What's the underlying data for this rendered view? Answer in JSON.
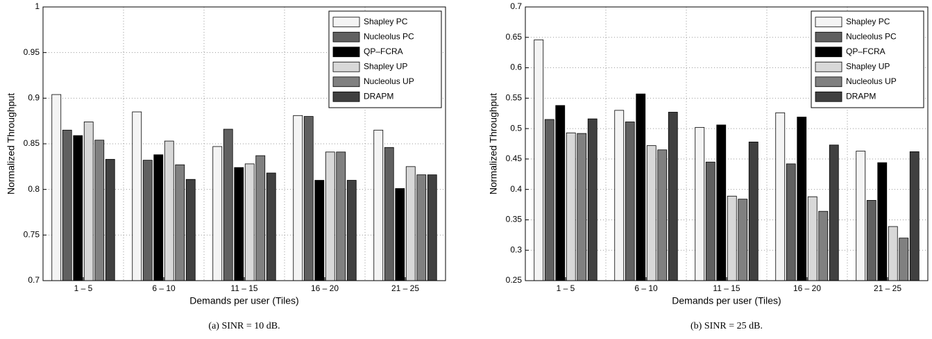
{
  "chart_data": [
    {
      "type": "bar",
      "caption": "(a) SINR = 10 dB.",
      "xlabel": "Demands per user (Tiles)",
      "ylabel": "Normalized Throughput",
      "categories": [
        "1 – 5",
        "6 – 10",
        "11 – 15",
        "16 – 20",
        "21 – 25"
      ],
      "ylim": [
        0.7,
        1
      ],
      "yticks": [
        0.7,
        0.75,
        0.8,
        0.85,
        0.9,
        0.95,
        1
      ],
      "grid": true,
      "legend": "upper right",
      "series": [
        {
          "name": "Shapley PC",
          "color": "#f4f4f4",
          "values": [
            0.904,
            0.885,
            0.847,
            0.881,
            0.865
          ]
        },
        {
          "name": "Nucleolus PC",
          "color": "#606060",
          "values": [
            0.865,
            0.832,
            0.866,
            0.88,
            0.846
          ]
        },
        {
          "name": "QP–FCRA",
          "color": "#000000",
          "values": [
            0.859,
            0.838,
            0.824,
            0.81,
            0.801
          ]
        },
        {
          "name": "Shapley UP",
          "color": "#d8d8d8",
          "values": [
            0.874,
            0.853,
            0.828,
            0.841,
            0.825
          ]
        },
        {
          "name": "Nucleolus UP",
          "color": "#808080",
          "values": [
            0.854,
            0.827,
            0.837,
            0.841,
            0.816
          ]
        },
        {
          "name": "DRAPM",
          "color": "#404040",
          "values": [
            0.833,
            0.811,
            0.818,
            0.81,
            0.816
          ]
        }
      ]
    },
    {
      "type": "bar",
      "caption": "(b) SINR = 25 dB.",
      "xlabel": "Demands per user (Tiles)",
      "ylabel": "Normalized Throughput",
      "categories": [
        "1 – 5",
        "6 – 10",
        "11 – 15",
        "16 – 20",
        "21 – 25"
      ],
      "ylim": [
        0.25,
        0.7
      ],
      "yticks": [
        0.25,
        0.3,
        0.35,
        0.4,
        0.45,
        0.5,
        0.55,
        0.6,
        0.65,
        0.7
      ],
      "grid": true,
      "legend": "upper right",
      "series": [
        {
          "name": "Shapley PC",
          "color": "#f4f4f4",
          "values": [
            0.646,
            0.53,
            0.502,
            0.526,
            0.463
          ]
        },
        {
          "name": "Nucleolus PC",
          "color": "#606060",
          "values": [
            0.515,
            0.511,
            0.445,
            0.442,
            0.382
          ]
        },
        {
          "name": "QP–FCRA",
          "color": "#000000",
          "values": [
            0.538,
            0.557,
            0.506,
            0.519,
            0.444
          ]
        },
        {
          "name": "Shapley UP",
          "color": "#d8d8d8",
          "values": [
            0.493,
            0.472,
            0.389,
            0.388,
            0.339
          ]
        },
        {
          "name": "Nucleolus UP",
          "color": "#808080",
          "values": [
            0.492,
            0.465,
            0.384,
            0.364,
            0.32
          ]
        },
        {
          "name": "DRAPM",
          "color": "#404040",
          "values": [
            0.516,
            0.527,
            0.478,
            0.473,
            0.462
          ]
        }
      ]
    }
  ]
}
